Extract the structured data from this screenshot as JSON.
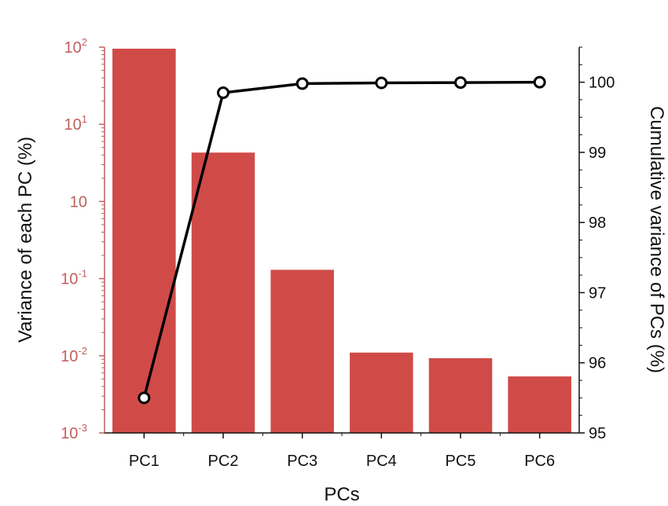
{
  "chart_data": {
    "type": "bar",
    "title": "",
    "xlabel": "PCs",
    "ylabel": "Variance of each PC (%)",
    "y2label": "Cumulative variance of PCs (%)",
    "categories": [
      "PC1",
      "PC2",
      "PC3",
      "PC4",
      "PC5",
      "PC6"
    ],
    "y_scale": "log",
    "ylim": [
      0.001,
      100
    ],
    "y2lim": [
      95,
      100.5
    ],
    "y_ticks": [
      {
        "value": 100,
        "base": "10",
        "exp": "2"
      },
      {
        "value": 10,
        "base": "10",
        "exp": "1"
      },
      {
        "value": 1,
        "base": "10",
        "exp": ""
      },
      {
        "value": 0.1,
        "base": "10",
        "exp": "-1"
      },
      {
        "value": 0.01,
        "base": "10",
        "exp": "-2"
      },
      {
        "value": 0.001,
        "base": "10",
        "exp": "-3"
      }
    ],
    "y2_ticks": [
      "95",
      "96",
      "97",
      "98",
      "99",
      "100"
    ],
    "series": [
      {
        "type": "bar",
        "axis": "left",
        "values": [
          95.5,
          4.3,
          0.13,
          0.011,
          0.0093,
          0.0054
        ],
        "color": "#d04b48"
      },
      {
        "type": "line",
        "axis": "right",
        "values": [
          95.5,
          99.85,
          99.98,
          99.99,
          99.995,
          100.0
        ],
        "color": "#000000",
        "marker": "open-circle"
      }
    ],
    "colors": {
      "left_axis": "#c0605e",
      "right_axis": "#111111",
      "bar": "#d04b48",
      "line": "#000000"
    },
    "grid": false,
    "legend": "none"
  }
}
